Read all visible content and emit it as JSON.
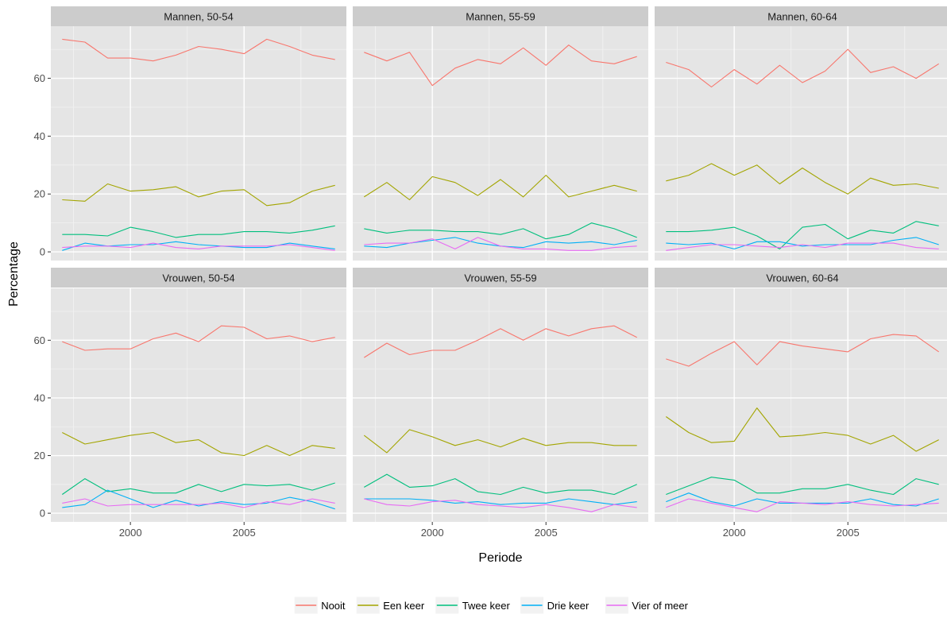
{
  "chart_data": {
    "type": "line",
    "xlabel": "Periode",
    "ylabel": "Percentage",
    "xlim": [
      1996.5,
      2009.5
    ],
    "ylim": [
      -3,
      78
    ],
    "x_ticks": [
      2000,
      2005
    ],
    "y_ticks": [
      0,
      20,
      40,
      60
    ],
    "grid": true,
    "legend_position": "bottom",
    "colors": {
      "Nooit": "#F8766D",
      "Een keer": "#A3A500",
      "Twee keer": "#00BF7D",
      "Drie keer": "#00B0F6",
      "Vier of meer": "#E76BF3",
      "panel_bg": "#E5E5E5",
      "strip_bg": "#CCCCCC",
      "grid": "#FFFFFF"
    },
    "x": [
      1997,
      1998,
      1999,
      2000,
      2001,
      2002,
      2003,
      2004,
      2005,
      2006,
      2007,
      2008,
      2009
    ],
    "series_names": [
      "Nooit",
      "Een keer",
      "Twee keer",
      "Drie keer",
      "Vier of meer"
    ],
    "panels": [
      {
        "title": "Mannen, 50-54",
        "series": [
          {
            "name": "Nooit",
            "values": [
              73.5,
              72.5,
              67,
              67,
              66,
              68,
              71,
              70,
              68.5,
              73.5,
              71,
              68,
              66.5
            ]
          },
          {
            "name": "Een keer",
            "values": [
              18,
              17.5,
              23.5,
              21,
              21.5,
              22.5,
              19,
              21,
              21.5,
              16,
              17,
              21,
              23
            ]
          },
          {
            "name": "Twee keer",
            "values": [
              6,
              6,
              5.5,
              8.5,
              7,
              5,
              6,
              6,
              7,
              7,
              6.5,
              7.5,
              9
            ]
          },
          {
            "name": "Drie keer",
            "values": [
              0.5,
              3,
              2,
              2.5,
              2.5,
              3.5,
              2.5,
              2,
              1.5,
              1.5,
              3,
              2,
              1
            ]
          },
          {
            "name": "Vier of meer",
            "values": [
              1.5,
              2,
              2,
              1.5,
              3,
              1.5,
              1,
              2,
              2,
              2,
              2.5,
              1.5,
              0.5
            ]
          }
        ]
      },
      {
        "title": "Mannen, 55-59",
        "series": [
          {
            "name": "Nooit",
            "values": [
              69,
              66,
              69,
              57.5,
              63.5,
              66.5,
              65,
              70.5,
              64.5,
              71.5,
              66,
              65,
              67.5
            ]
          },
          {
            "name": "Een keer",
            "values": [
              19,
              24,
              18,
              26,
              24,
              19.5,
              25,
              19,
              26.5,
              19,
              21,
              23,
              21
            ]
          },
          {
            "name": "Twee keer",
            "values": [
              8,
              6.5,
              7.5,
              7.5,
              7,
              7,
              6,
              8,
              4.5,
              6,
              10,
              8,
              5
            ]
          },
          {
            "name": "Drie keer",
            "values": [
              2,
              1.5,
              3,
              4,
              5,
              3,
              2,
              1.5,
              3.5,
              3,
              3.5,
              2.5,
              4
            ]
          },
          {
            "name": "Vier of meer",
            "values": [
              2.5,
              3,
              3,
              4.5,
              1,
              5,
              2,
              1,
              1,
              0.5,
              0.5,
              1.5,
              2
            ]
          }
        ]
      },
      {
        "title": "Mannen, 60-64",
        "series": [
          {
            "name": "Nooit",
            "values": [
              65.5,
              63,
              57,
              63,
              58,
              64.5,
              58.5,
              62.5,
              70,
              62,
              64,
              60,
              65
            ]
          },
          {
            "name": "Een keer",
            "values": [
              24.5,
              26.5,
              30.5,
              26.5,
              30,
              23.5,
              29,
              24,
              20,
              25.5,
              23,
              23.5,
              22
            ]
          },
          {
            "name": "Twee keer",
            "values": [
              7,
              7,
              7.5,
              8.5,
              5.5,
              1,
              8.5,
              9.5,
              4.5,
              7.5,
              6.5,
              10.5,
              9
            ]
          },
          {
            "name": "Drie keer",
            "values": [
              3,
              2.5,
              3,
              1,
              3.5,
              3.5,
              2,
              2.5,
              2.5,
              2.5,
              4,
              5,
              2.5
            ]
          },
          {
            "name": "Vier of meer",
            "values": [
              0.5,
              1.5,
              2.5,
              2.5,
              2,
              1.5,
              2.5,
              1.5,
              3,
              3,
              3,
              1.5,
              1
            ]
          }
        ]
      },
      {
        "title": "Vrouwen, 50-54",
        "series": [
          {
            "name": "Nooit",
            "values": [
              59.5,
              56.5,
              57,
              57,
              60.5,
              62.5,
              59.5,
              65,
              64.5,
              60.5,
              61.5,
              59.5,
              61
            ]
          },
          {
            "name": "Een keer",
            "values": [
              28,
              24,
              25.5,
              27,
              28,
              24.5,
              25.5,
              21,
              20,
              23.5,
              20,
              23.5,
              22.5
            ]
          },
          {
            "name": "Twee keer",
            "values": [
              6.5,
              12,
              7.5,
              8.5,
              7,
              7,
              10,
              7.5,
              10,
              9.5,
              10,
              8,
              10.5
            ]
          },
          {
            "name": "Drie keer",
            "values": [
              2,
              3,
              8,
              5,
              2,
              4.5,
              2.5,
              4,
              3,
              3.5,
              5.5,
              4,
              1.5
            ]
          },
          {
            "name": "Vier of meer",
            "values": [
              3.5,
              5,
              2.5,
              3,
              3,
              3,
              3,
              3.5,
              2,
              4,
              3,
              5,
              3.5
            ]
          }
        ]
      },
      {
        "title": "Vrouwen, 55-59",
        "series": [
          {
            "name": "Nooit",
            "values": [
              54,
              59,
              55,
              56.5,
              56.5,
              60,
              64,
              60,
              64,
              61.5,
              64,
              65,
              61
            ]
          },
          {
            "name": "Een keer",
            "values": [
              27,
              21,
              29,
              26.5,
              23.5,
              25.5,
              23,
              26,
              23.5,
              24.5,
              24.5,
              23.5,
              23.5
            ]
          },
          {
            "name": "Twee keer",
            "values": [
              9,
              13.5,
              9,
              9.5,
              12,
              7.5,
              6.5,
              9,
              7,
              8,
              8,
              6.5,
              10
            ]
          },
          {
            "name": "Drie keer",
            "values": [
              5,
              5,
              5,
              4.5,
              3.5,
              4,
              3,
              3.5,
              3.5,
              5,
              4,
              3,
              4
            ]
          },
          {
            "name": "Vier of meer",
            "values": [
              5,
              3,
              2.5,
              4,
              4.5,
              3,
              2.5,
              2,
              3,
              2,
              0.5,
              3,
              2
            ]
          }
        ]
      },
      {
        "title": "Vrouwen, 60-64",
        "series": [
          {
            "name": "Nooit",
            "values": [
              53.5,
              51,
              55.5,
              59.5,
              51.5,
              59.5,
              58,
              57,
              56,
              60.5,
              62,
              61.5,
              56
            ]
          },
          {
            "name": "Een keer",
            "values": [
              33.5,
              28,
              24.5,
              25,
              36.5,
              26.5,
              27,
              28,
              27,
              24,
              27,
              21.5,
              25.5
            ]
          },
          {
            "name": "Twee keer",
            "values": [
              6.5,
              9.5,
              12.5,
              11.5,
              7,
              7,
              8.5,
              8.5,
              10,
              8,
              6.5,
              12,
              10
            ]
          },
          {
            "name": "Drie keer",
            "values": [
              4,
              7,
              4,
              2.5,
              5,
              3.5,
              3.5,
              3.5,
              3.5,
              5,
              3,
              2.5,
              5
            ]
          },
          {
            "name": "Vier of meer",
            "values": [
              2,
              5,
              3.5,
              2,
              0.5,
              4,
              3.5,
              3,
              4,
              3,
              2.5,
              3,
              3.5
            ]
          }
        ]
      }
    ]
  }
}
